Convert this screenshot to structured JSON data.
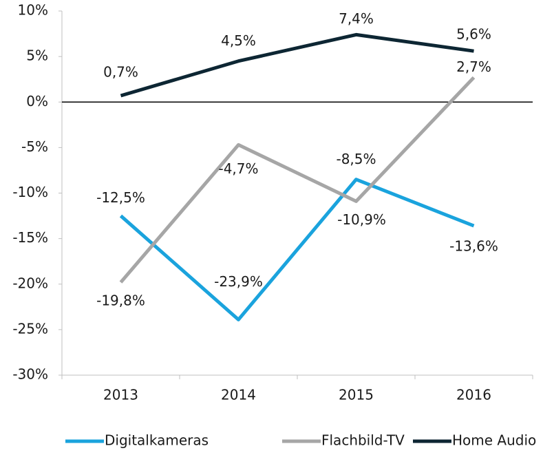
{
  "chart_data": {
    "type": "line",
    "categories": [
      "2013",
      "2014",
      "2015",
      "2016"
    ],
    "series": [
      {
        "name": "Digitalkameras",
        "color": "#1aa3dd",
        "values": [
          -12.5,
          -23.9,
          -8.5,
          -13.6
        ],
        "value_labels": [
          "-12,5%",
          "-23,9%",
          "-8,5%",
          "-13,6%"
        ]
      },
      {
        "name": "Flachbild-TV",
        "color": "#a6a6a6",
        "values": [
          -19.8,
          -4.7,
          -10.9,
          2.7
        ],
        "value_labels": [
          "-19,8%",
          "-4,7%",
          "-10,9%",
          "2,7%"
        ]
      },
      {
        "name": "Home Audio",
        "color": "#0d2633",
        "values": [
          0.7,
          4.5,
          7.4,
          5.6
        ],
        "value_labels": [
          "0,7%",
          "4,5%",
          "7,4%",
          "5,6%"
        ]
      }
    ],
    "ylim": [
      -30,
      10
    ],
    "yticks": [
      {
        "value": -30,
        "label": "-30%"
      },
      {
        "value": -25,
        "label": "-25%"
      },
      {
        "value": -20,
        "label": "-20%"
      },
      {
        "value": -15,
        "label": "-15%"
      },
      {
        "value": -10,
        "label": "-10%"
      },
      {
        "value": -5,
        "label": "-5%"
      },
      {
        "value": 0,
        "label": "0%"
      },
      {
        "value": 5,
        "label": "5%"
      },
      {
        "value": 10,
        "label": "10%"
      }
    ],
    "grid": false,
    "legend": "bottom"
  }
}
